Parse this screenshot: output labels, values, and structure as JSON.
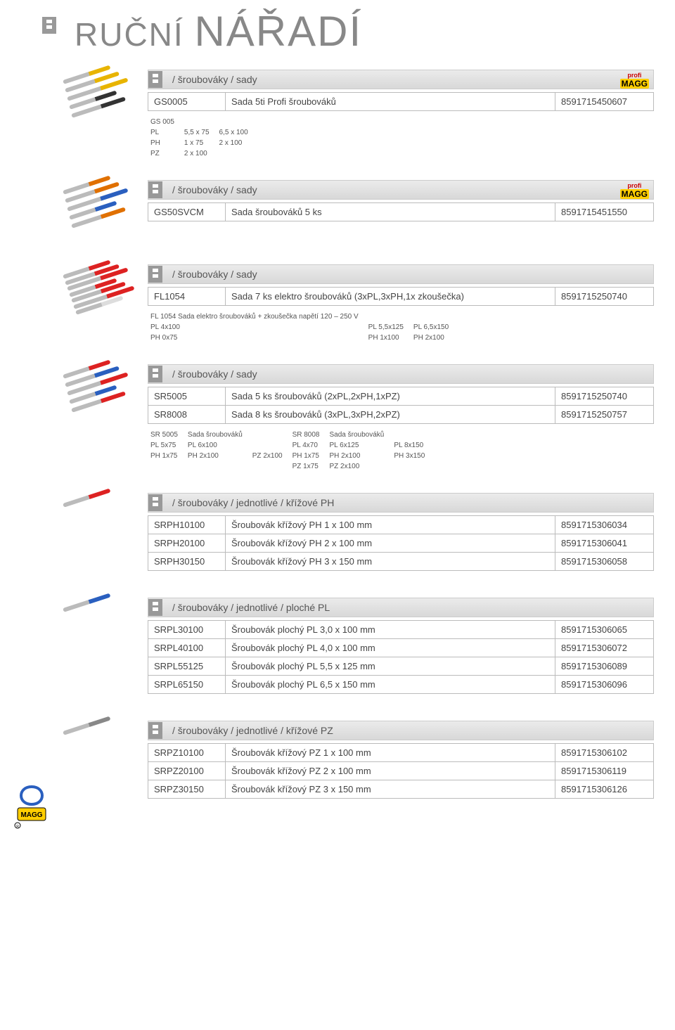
{
  "colors": {
    "heading": "#888888",
    "bullet": "#999999",
    "border": "#bbbbbb",
    "head_grad_top": "#ebebeb",
    "head_grad_bot": "#d8d8d8",
    "text": "#444444",
    "profi_red": "#cc0000",
    "profi_yellow": "#ffce00",
    "ph_yellow": "#e8b400",
    "ph_orange": "#e07000",
    "ph_red": "#d22",
    "ph_blue": "#2a5fbf",
    "ph_grey": "#888"
  },
  "page_title_small": "RUČNÍ ",
  "page_title_big": "NÁŘADÍ",
  "profi_label_top": "profi",
  "profi_label_bot": "MAGG",
  "sections": [
    {
      "header": "/ šroubováky / sady",
      "profi": true,
      "thumb_colors": [
        "#e8b400",
        "#e8b400",
        "#e8b400",
        "#333",
        "#333"
      ],
      "rows": [
        {
          "code": "GS0005",
          "desc": "Sada 5ti Profi šroubováků",
          "ean": "8591715450607"
        }
      ],
      "specs": [
        [
          "GS 005",
          "",
          ""
        ],
        [
          "PL",
          "5,5 x 75",
          "6,5 x 100"
        ],
        [
          "PH",
          "1 x 75",
          "2 x 100"
        ],
        [
          "PZ",
          "2  x 100",
          ""
        ]
      ]
    },
    {
      "header": "/ šroubováky / sady",
      "profi": true,
      "thumb_colors": [
        "#e07000",
        "#e07000",
        "#2a5fbf",
        "#2a5fbf",
        "#e07000"
      ],
      "rows": [
        {
          "code": "GS50SVCM",
          "desc": "Sada šroubováků 5 ks",
          "ean": "8591715451550"
        }
      ],
      "specs": []
    },
    {
      "header": "/ šroubováky / sady",
      "profi": false,
      "thumb_colors": [
        "#d22",
        "#d22",
        "#d22",
        "#d22",
        "#d22",
        "#d22",
        "#ddd"
      ],
      "rows": [
        {
          "code": "FL1054",
          "desc": "Sada 7 ks elektro šroubováků (3xPL,3xPH,1x zkoušečka)",
          "ean": "8591715250740"
        }
      ],
      "specs": [
        [
          "FL 1054 Sada elektro šroubováků + zkoušečka napětí 120 – 250 V",
          "",
          ""
        ],
        [
          "PL 4x100",
          "PL 5,5x125",
          "PL 6,5x150"
        ],
        [
          "PH 0x75",
          "PH 1x100",
          "PH 2x100"
        ]
      ]
    },
    {
      "header": "/ šroubováky / sady",
      "profi": false,
      "thumb_colors": [
        "#d22",
        "#2a5fbf",
        "#d22",
        "#2a5fbf",
        "#d22"
      ],
      "rows": [
        {
          "code": "SR5005",
          "desc": "Sada 5 ks šroubováků (2xPL,2xPH,1xPZ)",
          "ean": "8591715250740"
        },
        {
          "code": "SR8008",
          "desc": "Sada 8 ks šroubováků (3xPL,3xPH,2xPZ)",
          "ean": "8591715250757"
        }
      ],
      "specs": [
        [
          "SR 5005",
          "Sada šroubováků",
          "",
          "SR 8008",
          "Sada šroubováků",
          ""
        ],
        [
          "PL 5x75",
          "PL 6x100",
          "",
          "PL 4x70",
          "PL 6x125",
          "PL 8x150"
        ],
        [
          "PH 1x75",
          "PH 2x100",
          "PZ 2x100",
          "PH 1x75",
          "PH 2x100",
          "PH 3x150"
        ],
        [
          "",
          "",
          "",
          "PZ 1x75",
          "PZ 2x100",
          ""
        ]
      ]
    },
    {
      "header": "/ šroubováky / jednotlivé / křížové PH",
      "profi": false,
      "thumb_colors": [
        "#d22"
      ],
      "rows": [
        {
          "code": "SRPH10100",
          "desc": "Šroubovák křížový PH 1 x 100 mm",
          "ean": "8591715306034"
        },
        {
          "code": "SRPH20100",
          "desc": "Šroubovák křížový PH 2 x 100 mm",
          "ean": "8591715306041"
        },
        {
          "code": "SRPH30150",
          "desc": "Šroubovák křížový PH 3 x 150 mm",
          "ean": "8591715306058"
        }
      ],
      "specs": []
    },
    {
      "header": "/ šroubováky / jednotlivé / ploché PL",
      "profi": false,
      "thumb_colors": [
        "#2a5fbf"
      ],
      "rows": [
        {
          "code": "SRPL30100",
          "desc": "Šroubovák plochý PL 3,0 x 100 mm",
          "ean": "8591715306065"
        },
        {
          "code": "SRPL40100",
          "desc": "Šroubovák plochý PL 4,0 x 100 mm",
          "ean": "8591715306072"
        },
        {
          "code": "SRPL55125",
          "desc": "Šroubovák plochý PL 5,5 x 125 mm",
          "ean": "8591715306089"
        },
        {
          "code": "SRPL65150",
          "desc": "Šroubovák plochý PL 6,5 x 150 mm",
          "ean": "8591715306096"
        }
      ],
      "specs": []
    },
    {
      "header": "/ šroubováky / jednotlivé / křížové PZ",
      "profi": false,
      "thumb_colors": [
        "#888"
      ],
      "rows": [
        {
          "code": "SRPZ10100",
          "desc": "Šroubovák křížový PZ 1 x 100 mm",
          "ean": "8591715306102"
        },
        {
          "code": "SRPZ20100",
          "desc": "Šroubovák křížový PZ 2 x 100 mm",
          "ean": "8591715306119"
        },
        {
          "code": "SRPZ30150",
          "desc": "Šroubovák křížový PZ 3 x 150 mm",
          "ean": "8591715306126"
        }
      ],
      "specs": []
    }
  ]
}
